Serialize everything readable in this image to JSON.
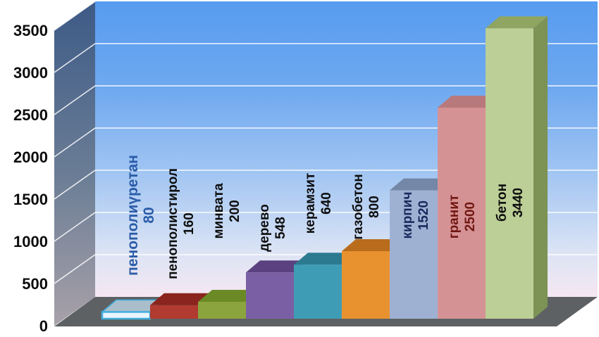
{
  "page": {
    "background": "#ffffff"
  },
  "chart_data": {
    "type": "bar",
    "title": "",
    "xlabel": "",
    "ylabel": "",
    "categories": [
      "пенополиүретан",
      "пенополистирол",
      "минвата",
      "дерево",
      "керамзит",
      "газобетон",
      "кирпич",
      "гранит",
      "бетон"
    ],
    "values": [
      80,
      160,
      200,
      548,
      640,
      800,
      1520,
      2500,
      3440
    ],
    "yaxis": {
      "min": 0,
      "max": 3500,
      "step": 500,
      "ticks": [
        3500,
        3000,
        2500,
        2000,
        1500,
        1000,
        500,
        0
      ],
      "grid": true,
      "style_3d": true
    },
    "bars": [
      {
        "label": "пенополиүретан",
        "value": 80,
        "value_text": "80",
        "front": "#E9F5FC",
        "top": "#A9BDCB",
        "stroke": "#3EAEDF",
        "text": "#2B5CA8"
      },
      {
        "label": "пенополистирол",
        "value": 160,
        "value_text": "160",
        "front": "#B13A31",
        "top": "#8A241E",
        "text": "#0D0D0D"
      },
      {
        "label": "минвата",
        "value": 200,
        "value_text": "200",
        "front": "#8CA43D",
        "top": "#6B8A26",
        "text": "#0D0D0D"
      },
      {
        "label": "дерево",
        "value": 548,
        "value_text": "548",
        "front": "#7B5FA5",
        "top": "#5B4180",
        "text": "#0D0D0D"
      },
      {
        "label": "керамзит",
        "value": 640,
        "value_text": "640",
        "front": "#3E9DB5",
        "top": "#2C7A90",
        "text": "#0D0D0D"
      },
      {
        "label": "газобетон",
        "value": 800,
        "value_text": "800",
        "front": "#E8922F",
        "top": "#B96C1B",
        "text": "#0D0D0D"
      },
      {
        "label": "кирпич",
        "value": 1520,
        "value_text": "1520",
        "front": "#9FB1D3",
        "top": "#7487A6",
        "text": "#19295C"
      },
      {
        "label": "гранит",
        "value": 2500,
        "value_text": "2500",
        "front": "#D59294",
        "top": "#B7797B",
        "text": "#701712"
      },
      {
        "label": "бетон",
        "value": 3440,
        "value_text": "3440",
        "front": "#BCCF97",
        "top": "#8FA561",
        "side": "#7D9355",
        "text": "#0D0D0D"
      }
    ],
    "colors": {
      "back_wall_gradient": [
        "#579CEF",
        "#6FA9F0",
        "#A5C7F2",
        "#DCE4F5",
        "#F5E7F2"
      ],
      "left_wall_gradient": [
        "#3D5A86",
        "#6C7E96",
        "#A8A1A9"
      ],
      "floor": "#5E6163",
      "gridline": "#FFFFFF",
      "tick_text": "#0C0C0C"
    }
  }
}
